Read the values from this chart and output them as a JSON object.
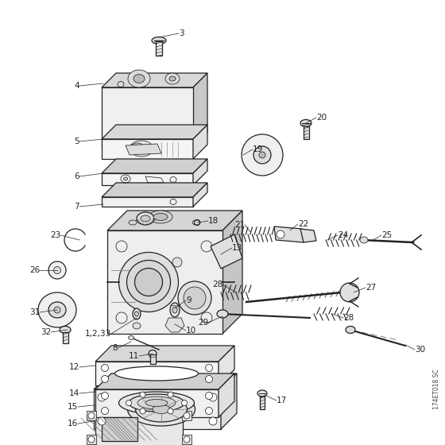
{
  "background_color": "#ffffff",
  "watermark": "174ET018 SC",
  "fig_w": 5.6,
  "fig_h": 5.6,
  "dpi": 100,
  "gray": "#222222",
  "lgray": "#777777",
  "font_size": 7.5,
  "lw_main": 0.9,
  "lw_thin": 0.55
}
